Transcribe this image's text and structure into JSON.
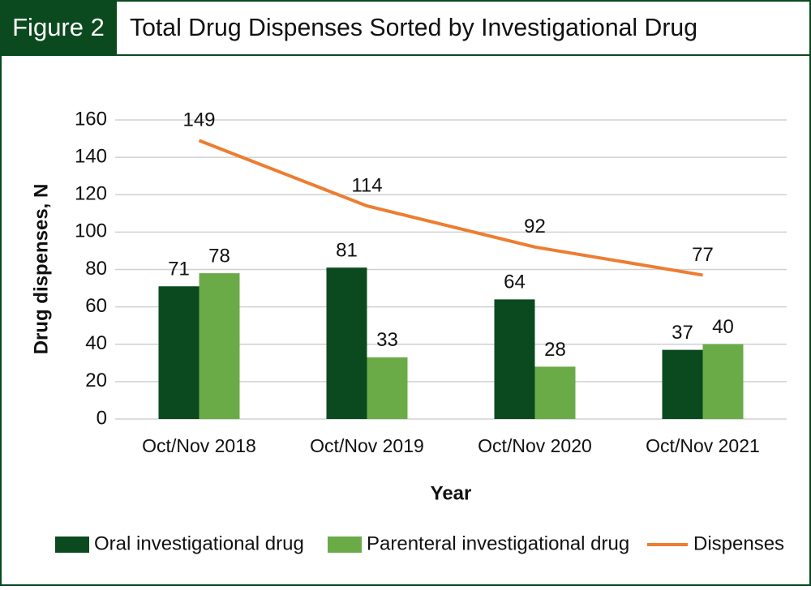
{
  "chart_data": {
    "type": "bar",
    "figure_label": "Figure 2",
    "title": "Total Drug Dispenses Sorted by Investigational Drug",
    "ylabel": "Drug dispenses, N",
    "xlabel": "Year",
    "categories": [
      "Oct/Nov 2018",
      "Oct/Nov 2019",
      "Oct/Nov 2020",
      "Oct/Nov 2021"
    ],
    "series": [
      {
        "name": "Oral investigational drug",
        "color": "#0b4a1f",
        "values": [
          71,
          81,
          64,
          37
        ]
      },
      {
        "name": "Parenteral investigational drug",
        "color": "#6aab47",
        "values": [
          78,
          33,
          28,
          40
        ]
      },
      {
        "name": "Dispenses",
        "color": "#ed7d31",
        "type": "line",
        "values": [
          149,
          114,
          92,
          77
        ]
      }
    ],
    "ylim": [
      0,
      160
    ],
    "yticks": [
      0,
      20,
      40,
      60,
      80,
      100,
      120,
      140,
      160
    ],
    "grid": true
  }
}
